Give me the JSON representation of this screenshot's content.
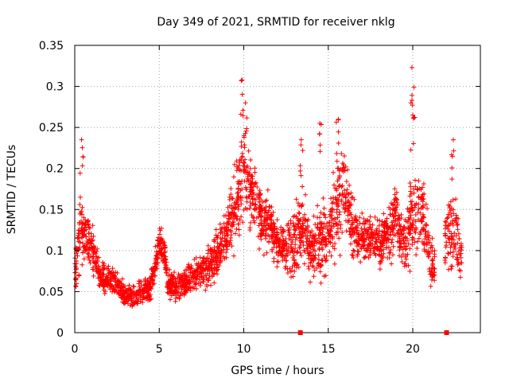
{
  "chart_data": {
    "type": "scatter",
    "title": "Day 349 of 2021, SRMTID for receiver nklg",
    "xlabel": "GPS time / hours",
    "ylabel": "SRMTID / TECUs",
    "xlim": [
      0,
      24
    ],
    "ylim": [
      0,
      0.35
    ],
    "x_ticks": [
      0,
      5,
      10,
      15,
      20
    ],
    "x_tick_labels": [
      "0",
      "5",
      "10",
      "15",
      "20"
    ],
    "y_ticks": [
      0,
      0.05,
      0.1,
      0.15,
      0.2,
      0.25,
      0.3,
      0.35
    ],
    "y_tick_labels": [
      "0",
      "0.05",
      "0.1",
      "0.15",
      "0.2",
      "0.25",
      "0.3",
      "0.35"
    ],
    "grid": true,
    "marker": "+",
    "color": "#ff0000",
    "gap_markers_x": [
      13.35,
      22.0
    ],
    "series_profile": {
      "x": [
        0.0,
        0.3,
        0.5,
        0.8,
        1.0,
        1.5,
        2.0,
        2.5,
        3.0,
        3.5,
        4.0,
        4.5,
        5.0,
        5.3,
        5.5,
        6.0,
        6.5,
        7.0,
        7.5,
        8.0,
        8.5,
        9.0,
        9.5,
        10.0,
        10.5,
        11.0,
        11.5,
        12.0,
        12.5,
        13.0,
        13.5,
        14.0,
        14.5,
        15.0,
        15.5,
        16.0,
        16.5,
        17.0,
        17.5,
        18.0,
        18.5,
        19.0,
        19.5,
        20.0,
        20.5,
        21.0,
        21.2,
        22.0,
        22.5,
        22.9
      ],
      "y": [
        0.06,
        0.13,
        0.12,
        0.11,
        0.1,
        0.07,
        0.065,
        0.06,
        0.045,
        0.045,
        0.05,
        0.055,
        0.11,
        0.1,
        0.06,
        0.055,
        0.06,
        0.07,
        0.075,
        0.08,
        0.1,
        0.12,
        0.16,
        0.2,
        0.17,
        0.14,
        0.13,
        0.11,
        0.1,
        0.11,
        0.13,
        0.1,
        0.11,
        0.12,
        0.15,
        0.18,
        0.12,
        0.11,
        0.12,
        0.11,
        0.12,
        0.14,
        0.11,
        0.15,
        0.15,
        0.1,
        0.08,
        0.12,
        0.12,
        0.09
      ],
      "spread": [
        0.04,
        0.07,
        0.05,
        0.04,
        0.04,
        0.025,
        0.025,
        0.025,
        0.02,
        0.02,
        0.02,
        0.025,
        0.03,
        0.03,
        0.025,
        0.025,
        0.025,
        0.03,
        0.03,
        0.035,
        0.04,
        0.05,
        0.07,
        0.08,
        0.06,
        0.05,
        0.05,
        0.035,
        0.035,
        0.06,
        0.06,
        0.05,
        0.07,
        0.06,
        0.08,
        0.07,
        0.05,
        0.04,
        0.04,
        0.04,
        0.05,
        0.06,
        0.05,
        0.09,
        0.06,
        0.05,
        0.03,
        0.06,
        0.06,
        0.04
      ],
      "peaks": [
        {
          "x": 0.4,
          "y": 0.235
        },
        {
          "x": 9.9,
          "y": 0.308
        },
        {
          "x": 10.1,
          "y": 0.28
        },
        {
          "x": 13.4,
          "y": 0.235
        },
        {
          "x": 14.5,
          "y": 0.255
        },
        {
          "x": 15.6,
          "y": 0.26
        },
        {
          "x": 19.95,
          "y": 0.323
        },
        {
          "x": 20.0,
          "y": 0.265
        },
        {
          "x": 22.4,
          "y": 0.235
        }
      ],
      "gaps": [
        [
          21.3,
          21.9
        ],
        [
          23.0,
          24.0
        ]
      ],
      "points_per_hour": 120
    }
  }
}
